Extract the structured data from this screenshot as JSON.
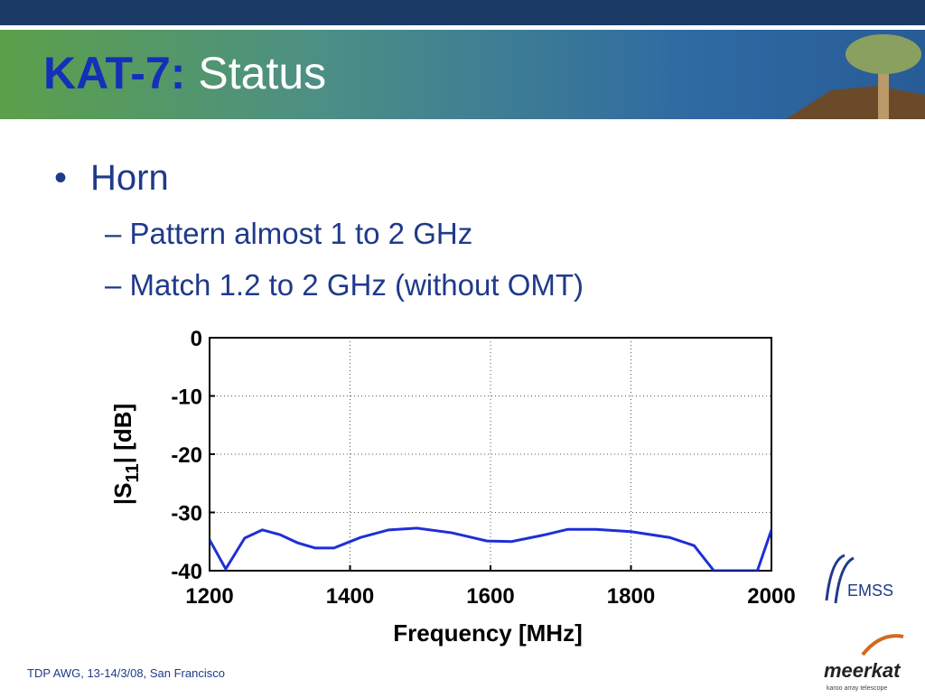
{
  "header": {
    "title_bold": "KAT-7:",
    "title_rest": "Status"
  },
  "bullets": [
    {
      "text": "Horn",
      "sub": [
        "Pattern almost 1 to 2 GHz",
        "Match 1.2 to 2 GHz (without OMT)"
      ]
    }
  ],
  "chart_data": {
    "type": "line",
    "xlabel": "Frequency [MHz]",
    "ylabel": [
      "|S",
      "11",
      "| [dB]"
    ],
    "x": [
      1200,
      1223,
      1250,
      1275,
      1300,
      1325,
      1350,
      1377,
      1415,
      1455,
      1495,
      1545,
      1595,
      1630,
      1675,
      1710,
      1750,
      1800,
      1855,
      1890,
      1918,
      1980,
      2000
    ],
    "series": [
      {
        "color": "#1f2fd6",
        "values": [
          -34.7,
          -39.7,
          -34.4,
          -33.0,
          -33.8,
          -35.2,
          -36.1,
          -36.1,
          -34.3,
          -33.0,
          -32.7,
          -33.5,
          -34.9,
          -35.0,
          -33.9,
          -32.9,
          -32.9,
          -33.3,
          -34.3,
          -35.7,
          -40,
          -40,
          -33
        ]
      }
    ],
    "xlim": [
      1200,
      2000
    ],
    "ylim": [
      -40,
      0
    ],
    "xticks": [
      1200,
      1400,
      1600,
      1800,
      2000
    ],
    "yticks": [
      0,
      -10,
      -20,
      -30,
      -40
    ],
    "grid": true
  },
  "footer": {
    "note": "TDP AWG, 13-14/3/08, San Francisco",
    "logo_emss": "EMSS",
    "logo_meerkat": "meerkat",
    "logo_tagline": "karoo array telescope"
  }
}
